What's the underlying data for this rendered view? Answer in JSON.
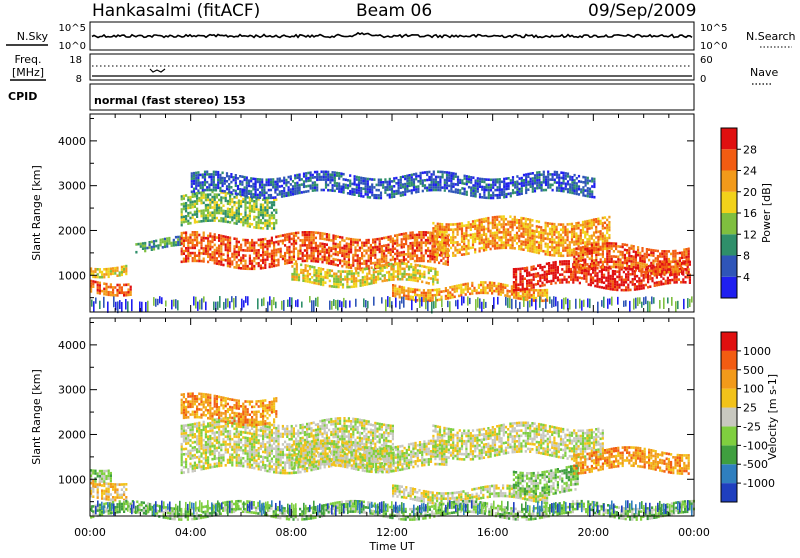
{
  "header": {
    "station": "Hankasalmi (fitACF)",
    "beam": "Beam 06",
    "date": "09/Sep/2009"
  },
  "top_panels": {
    "nsky_label": "N.Sky",
    "nsky_ticks": [
      "10^5",
      "10^0"
    ],
    "nsearch_label": "N.Search",
    "nsearch_ticks": [
      "10^5",
      "10^0"
    ],
    "freq_label": "Freq.",
    "freq_unit": "[MHz]",
    "freq_ticks": [
      "18",
      "8"
    ],
    "nave_label": "Nave",
    "nave_ticks": [
      "60",
      "0"
    ],
    "cpid_label": "CPID",
    "cpid_text": "normal (fast stereo) 153"
  },
  "chart_data": [
    {
      "type": "heatmap",
      "name": "power-panel",
      "xlabel": "",
      "ylabel": "Slant Range [km]",
      "x_range_hours": [
        0,
        24
      ],
      "ylim": [
        180,
        4600
      ],
      "yticks": [
        1000,
        2000,
        3000,
        4000
      ],
      "colorbar": {
        "label": "Power [dB]",
        "ticks": [
          "4",
          "8",
          "12",
          "16",
          "20",
          "24",
          "28"
        ],
        "colors": [
          "#1f1ff0",
          "#2f55b8",
          "#2f8f6a",
          "#7fbf3f",
          "#f2d21a",
          "#f29a1a",
          "#f25c12",
          "#e01010"
        ]
      },
      "bands": [
        {
          "t0": 0.0,
          "t1": 1.6,
          "r0": 650,
          "r1": 900,
          "level": 6
        },
        {
          "t0": 0.0,
          "t1": 1.4,
          "r0": 1050,
          "r1": 1250,
          "level": 4
        },
        {
          "t0": 1.8,
          "t1": 3.6,
          "r0": 1600,
          "r1": 1800,
          "level": 2
        },
        {
          "t0": 3.6,
          "t1": 7.4,
          "r0": 2150,
          "r1": 2800,
          "level": 3
        },
        {
          "t0": 3.6,
          "t1": 14.2,
          "r0": 1250,
          "r1": 1900,
          "level": 6
        },
        {
          "t0": 8.0,
          "t1": 13.8,
          "r0": 800,
          "r1": 1200,
          "level": 4
        },
        {
          "t0": 12.0,
          "t1": 18.2,
          "r0": 520,
          "r1": 780,
          "level": 5
        },
        {
          "t0": 13.6,
          "t1": 20.6,
          "r0": 1500,
          "r1": 2250,
          "level": 5
        },
        {
          "t0": 16.8,
          "t1": 23.8,
          "r0": 750,
          "r1": 1250,
          "level": 7
        },
        {
          "t0": 19.2,
          "t1": 23.8,
          "r0": 1100,
          "r1": 1650,
          "level": 6
        },
        {
          "t0": 4.0,
          "t1": 20.0,
          "r0": 2800,
          "r1": 3250,
          "level": 1
        }
      ]
    },
    {
      "type": "heatmap",
      "name": "velocity-panel",
      "xlabel": "Time UT",
      "ylabel": "Slant Range [km]",
      "x_range_hours": [
        0,
        24
      ],
      "xticks": [
        "00:00",
        "04:00",
        "08:00",
        "12:00",
        "16:00",
        "20:00",
        "00:00"
      ],
      "ylim": [
        180,
        4600
      ],
      "yticks": [
        1000,
        2000,
        3000,
        4000
      ],
      "colorbar": {
        "label": "Velocity [m s-1]",
        "ticks": [
          "1000",
          "500",
          "100",
          "25",
          "-25",
          "-100",
          "-500",
          "-1000"
        ],
        "colors": [
          "#1f3fbf",
          "#2f7fbf",
          "#3f9f3f",
          "#7fcf3f",
          "#c8c8c0",
          "#f2c21a",
          "#f29a1a",
          "#f25c12",
          "#e01010"
        ]
      },
      "bands": [
        {
          "t0": 0.0,
          "t1": 1.4,
          "r0": 650,
          "r1": 1000,
          "level": 5
        },
        {
          "t0": 0.0,
          "t1": 0.8,
          "r0": 1050,
          "r1": 1300,
          "level": 3
        },
        {
          "t0": 3.6,
          "t1": 12.0,
          "r0": 1250,
          "r1": 2300,
          "level": 4
        },
        {
          "t0": 8.0,
          "t1": 14.2,
          "r0": 1250,
          "r1": 1800,
          "level": 4
        },
        {
          "t0": 3.6,
          "t1": 7.4,
          "r0": 2300,
          "r1": 2850,
          "level": 6
        },
        {
          "t0": 12.0,
          "t1": 18.2,
          "r0": 520,
          "r1": 800,
          "level": 4
        },
        {
          "t0": 13.6,
          "t1": 20.4,
          "r0": 1550,
          "r1": 2200,
          "level": 4
        },
        {
          "t0": 16.8,
          "t1": 19.4,
          "r0": 700,
          "r1": 1250,
          "level": 3
        },
        {
          "t0": 19.2,
          "t1": 23.8,
          "r0": 1200,
          "r1": 1650,
          "level": 6
        },
        {
          "t0": 0.0,
          "t1": 24.0,
          "r0": 200,
          "r1": 450,
          "level": 3
        }
      ]
    }
  ]
}
